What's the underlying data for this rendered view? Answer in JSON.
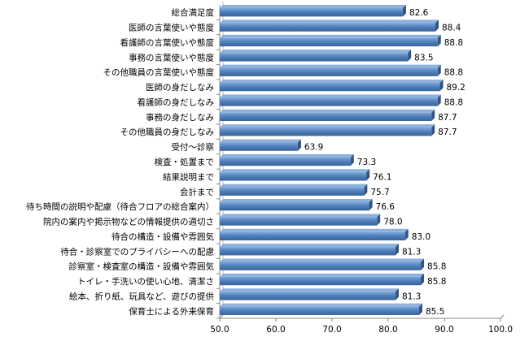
{
  "chart_data": {
    "type": "bar",
    "orientation": "horizontal",
    "title": "",
    "xlabel": "",
    "ylabel": "",
    "xlim": [
      50,
      100
    ],
    "x_ticks": [
      "50.0",
      "60.0",
      "70.0",
      "80.0",
      "90.0",
      "100.0"
    ],
    "grid": false,
    "bar_color": "#4f81bd",
    "categories": [
      "総合満足度",
      "医師の言葉使いや態度",
      "看護師の言葉使いや態度",
      "事務の言葉使いや態度",
      "その他職員の言葉使いや態度",
      "医師の身だしなみ",
      "看護師の身だしなみ",
      "事務の身だしなみ",
      "その他職員の身だしなみ",
      "受付～診察",
      "検査・処置まで",
      "結果説明まで",
      "会計まで",
      "待ち時間の説明や配慮（待合フロアの総合案内）",
      "院内の案内や掲示物などの情報提供の適切さ",
      "待合の構造・設備や雰囲気",
      "待合・診察室でのプライバシーへの配慮",
      "診察室・検査室の構造・設備や雰囲気",
      "トイレ・手洗いの使い心地、清潔さ",
      "絵本、折り紙、玩具など、遊びの提供",
      "保育士による外来保育"
    ],
    "values": [
      82.6,
      88.4,
      88.8,
      83.5,
      88.8,
      89.2,
      88.8,
      87.7,
      87.7,
      63.9,
      73.3,
      76.1,
      75.7,
      76.6,
      78.0,
      83.0,
      81.3,
      85.8,
      85.8,
      81.3,
      85.5
    ],
    "value_labels": [
      "82.6",
      "88.4",
      "88.8",
      "83.5",
      "88.8",
      "89.2",
      "88.8",
      "87.7",
      "87.7",
      "63.9",
      "73.3",
      "76.1",
      "75.7",
      "76.6",
      "78.0",
      "83.0",
      "81.3",
      "85.8",
      "85.8",
      "81.3",
      "85.5"
    ]
  }
}
